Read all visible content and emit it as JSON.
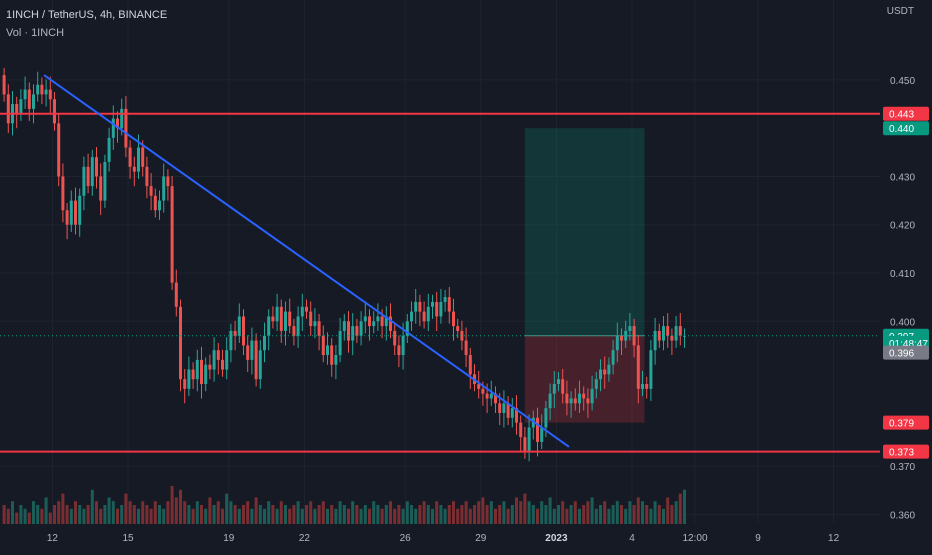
{
  "header": {
    "symbol": "1INCH / TetherUS, 4h, BINANCE",
    "volume": "Vol · 1INCH",
    "currency": "USDT"
  },
  "price_axis": {
    "ticks": [
      "0.450",
      "0.430",
      "0.420",
      "0.410",
      "0.400",
      "0.370",
      "0.360"
    ],
    "tick_values": [
      0.45,
      0.43,
      0.42,
      0.41,
      0.4,
      0.37,
      0.36
    ],
    "labels": [
      {
        "text": "0.443",
        "value": 0.443,
        "color": "#f23645"
      },
      {
        "text": "0.440",
        "value": 0.44,
        "color": "#089981"
      },
      {
        "text": "0.397",
        "value": 0.397,
        "color": "#089981"
      },
      {
        "text": "01:48:47",
        "value": 0.3955,
        "color": "#089981"
      },
      {
        "text": "0.396",
        "value": 0.3935,
        "color": "#787b86"
      },
      {
        "text": "0.379",
        "value": 0.379,
        "color": "#f23645"
      },
      {
        "text": "0.373",
        "value": 0.373,
        "color": "#f23645"
      }
    ],
    "range": [
      0.358,
      0.462
    ]
  },
  "time_axis": {
    "labels": [
      {
        "text": "12",
        "index": 12
      },
      {
        "text": "15",
        "index": 30
      },
      {
        "text": "19",
        "index": 54
      },
      {
        "text": "22",
        "index": 72
      },
      {
        "text": "26",
        "index": 96
      },
      {
        "text": "29",
        "index": 114
      },
      {
        "text": "2023",
        "index": 132,
        "bold": true
      },
      {
        "text": "4",
        "index": 150
      },
      {
        "text": "12:00",
        "index": 165
      },
      {
        "text": "9",
        "index": 180
      },
      {
        "text": "12",
        "index": 198
      }
    ]
  },
  "chart_data": {
    "type": "candlestick",
    "timeframe": "4h",
    "ylim": [
      0.358,
      0.462
    ],
    "close": [
      0.447,
      0.441,
      0.445,
      0.443,
      0.446,
      0.448,
      0.444,
      0.447,
      0.449,
      0.447,
      0.448,
      0.446,
      0.441,
      0.43,
      0.423,
      0.42,
      0.425,
      0.42,
      0.426,
      0.432,
      0.428,
      0.434,
      0.43,
      0.425,
      0.433,
      0.438,
      0.442,
      0.44,
      0.444,
      0.436,
      0.432,
      0.431,
      0.436,
      0.432,
      0.428,
      0.426,
      0.423,
      0.425,
      0.43,
      0.428,
      0.408,
      0.403,
      0.388,
      0.386,
      0.39,
      0.388,
      0.392,
      0.387,
      0.391,
      0.39,
      0.394,
      0.392,
      0.39,
      0.394,
      0.398,
      0.397,
      0.401,
      0.395,
      0.392,
      0.396,
      0.388,
      0.394,
      0.397,
      0.401,
      0.4,
      0.403,
      0.398,
      0.402,
      0.399,
      0.397,
      0.401,
      0.403,
      0.402,
      0.399,
      0.4,
      0.397,
      0.393,
      0.395,
      0.391,
      0.393,
      0.398,
      0.4,
      0.396,
      0.399,
      0.397,
      0.4,
      0.401,
      0.399,
      0.4,
      0.401,
      0.399,
      0.401,
      0.398,
      0.395,
      0.393,
      0.397,
      0.4,
      0.402,
      0.404,
      0.402,
      0.4,
      0.403,
      0.404,
      0.401,
      0.404,
      0.405,
      0.402,
      0.399,
      0.398,
      0.396,
      0.393,
      0.389,
      0.387,
      0.386,
      0.385,
      0.384,
      0.385,
      0.383,
      0.381,
      0.383,
      0.38,
      0.382,
      0.379,
      0.376,
      0.373,
      0.378,
      0.38,
      0.375,
      0.378,
      0.382,
      0.385,
      0.387,
      0.388,
      0.385,
      0.383,
      0.384,
      0.383,
      0.385,
      0.384,
      0.383,
      0.386,
      0.388,
      0.39,
      0.389,
      0.391,
      0.394,
      0.397,
      0.396,
      0.398,
      0.399,
      0.395,
      0.386,
      0.387,
      0.386,
      0.394,
      0.398,
      0.396,
      0.399,
      0.397,
      0.396,
      0.399,
      0.397,
      0.397
    ],
    "volume_scale": [
      0.5,
      0.4,
      0.6,
      0.3,
      0.5,
      0.4,
      0.3,
      0.6,
      0.5,
      0.4,
      0.7,
      0.3,
      0.5,
      0.6,
      0.8,
      0.5,
      0.4,
      0.6,
      0.5,
      0.4,
      0.5,
      0.9,
      0.6,
      0.4,
      0.5,
      0.7,
      0.6,
      0.4,
      0.5,
      0.8,
      0.6,
      0.5,
      0.4,
      0.6,
      0.5,
      0.4,
      0.6,
      0.5,
      0.4,
      0.6,
      1.0,
      0.7,
      0.9,
      0.6,
      0.5,
      0.4,
      0.6,
      0.5,
      0.4,
      0.7,
      0.5,
      0.6,
      0.4,
      0.8,
      0.6,
      0.5,
      0.4,
      0.5,
      0.6,
      0.4,
      0.7,
      0.5,
      0.4,
      0.6,
      0.5,
      0.4,
      0.6,
      0.5,
      0.4,
      0.5,
      0.6,
      0.4,
      0.5,
      0.6,
      0.4,
      0.5,
      0.6,
      0.4,
      0.5,
      0.4,
      0.6,
      0.5,
      0.4,
      0.6,
      0.5,
      0.4,
      0.5,
      0.4,
      0.6,
      0.5,
      0.4,
      0.5,
      0.6,
      0.4,
      0.5,
      0.4,
      0.6,
      0.5,
      0.4,
      0.5,
      0.6,
      0.5,
      0.4,
      0.6,
      0.5,
      0.4,
      0.5,
      0.6,
      0.4,
      0.5,
      0.6,
      0.4,
      0.5,
      0.6,
      0.7,
      0.5,
      0.6,
      0.4,
      0.5,
      0.6,
      0.4,
      0.5,
      0.7,
      0.6,
      0.8,
      0.6,
      0.5,
      0.4,
      0.6,
      0.5,
      0.7,
      0.4,
      0.5,
      0.6,
      0.4,
      0.5,
      0.6,
      0.4,
      0.5,
      0.6,
      0.7,
      0.4,
      0.5,
      0.6,
      0.4,
      0.5,
      0.6,
      0.5,
      0.4,
      0.6,
      0.5,
      0.7,
      0.6,
      0.5,
      0.4,
      0.6,
      0.5,
      0.4,
      0.7,
      0.5,
      0.6,
      0.8,
      0.9
    ],
    "open_first": 0.451,
    "horizontal_lines": [
      {
        "value": 0.443,
        "color": "#f23645"
      },
      {
        "value": 0.373,
        "color": "#f23645"
      }
    ],
    "trendline": {
      "from": {
        "index": 10,
        "value": 0.451
      },
      "to": {
        "index": 135,
        "value": 0.374
      },
      "color": "#2962ff"
    },
    "position": {
      "start_index": 124,
      "end_index": 152,
      "entry": 0.397,
      "target": 0.44,
      "stop": 0.379,
      "profit_color": "#089981",
      "loss_color": "#f23645"
    },
    "last_price": 0.397,
    "colors": {
      "up": "#26a69a",
      "down": "#ef5350",
      "vol_up": "#1b5e58",
      "vol_down": "#7a2e31"
    }
  }
}
